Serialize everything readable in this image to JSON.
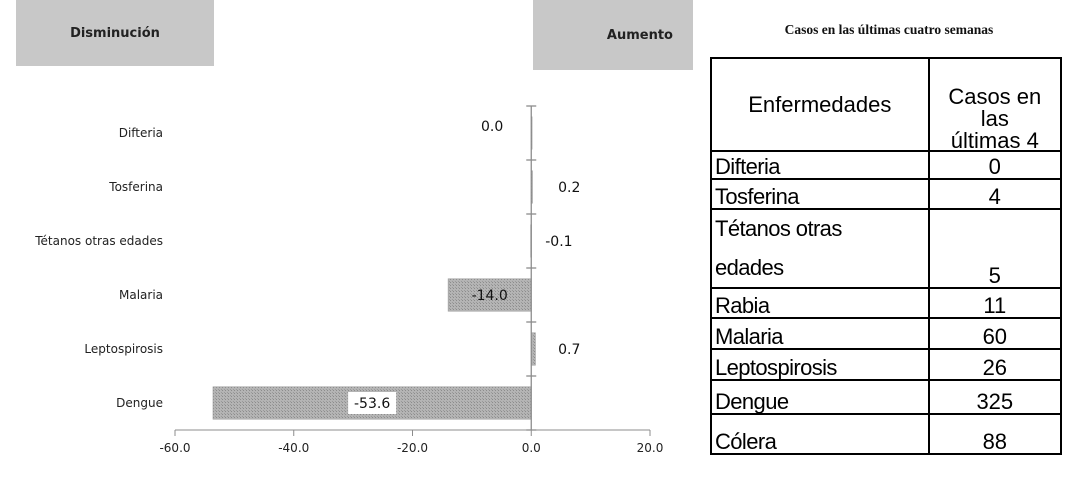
{
  "chart_data": {
    "type": "bar",
    "orientation": "horizontal",
    "categories": [
      "Difteria",
      "Tosferina",
      "Tétanos otras edades",
      "Malaria",
      "Leptospirosis",
      "Dengue"
    ],
    "values": [
      0.0,
      0.2,
      -0.1,
      -14.0,
      0.7,
      -53.6
    ],
    "value_labels": [
      "0.0",
      "0.2",
      "-0.1",
      "-14.0",
      "0.7",
      "-53.6"
    ],
    "xlim": [
      -60,
      20
    ],
    "x_ticks": [
      -60,
      -40,
      -20,
      0,
      20
    ],
    "x_tick_labels": [
      "-60.0",
      "-40.0",
      "-20.0",
      "0.0",
      "20.0"
    ],
    "bar_color": "#a6a6a6",
    "grid": false
  },
  "headers": {
    "left": "Disminución",
    "right": "Aumento"
  },
  "table": {
    "title": "Casos en las últimas cuatro semanas",
    "col_disease": "Enfermedades",
    "col_cases_line1": "Casos en las",
    "col_cases_line2": "últimas 4",
    "rows": [
      {
        "name": "Difteria",
        "cases": "0"
      },
      {
        "name": "Tosferina",
        "cases": "4"
      },
      {
        "name_line1": "Tétanos otras",
        "name_line2": "edades",
        "cases": "5"
      },
      {
        "name": "Rabia",
        "cases": "11"
      },
      {
        "name": "Malaria",
        "cases": "60"
      },
      {
        "name": "Leptospirosis",
        "cases": "26"
      },
      {
        "name": "Dengue",
        "cases": "325"
      },
      {
        "name": "Cólera",
        "cases": "88"
      }
    ]
  }
}
